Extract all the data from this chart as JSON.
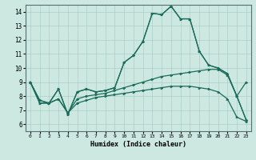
{
  "xlabel": "Humidex (Indice chaleur)",
  "xlim": [
    -0.5,
    23.5
  ],
  "ylim": [
    5.5,
    14.5
  ],
  "yticks": [
    6,
    7,
    8,
    9,
    10,
    11,
    12,
    13,
    14
  ],
  "xticks": [
    0,
    1,
    2,
    3,
    4,
    5,
    6,
    7,
    8,
    9,
    10,
    11,
    12,
    13,
    14,
    15,
    16,
    17,
    18,
    19,
    20,
    21,
    22,
    23
  ],
  "bg_color": "#cce8e0",
  "grid_color": "#aacfc8",
  "line_color": "#1a6b5a",
  "main_line": [
    9.0,
    7.5,
    7.5,
    8.5,
    6.7,
    8.3,
    8.5,
    8.3,
    8.4,
    8.6,
    10.4,
    10.9,
    11.9,
    13.9,
    13.8,
    14.4,
    13.5,
    13.5,
    11.2,
    10.2,
    10.0,
    9.6,
    8.0,
    9.0
  ],
  "line2": [
    9.0,
    7.5,
    7.5,
    8.5,
    6.7,
    8.3,
    8.5,
    8.3,
    8.4,
    8.6,
    10.4,
    10.9,
    11.9,
    13.9,
    13.8,
    14.4,
    13.5,
    13.5,
    11.2,
    10.2,
    10.0,
    9.6,
    8.0,
    6.3
  ],
  "diag1": [
    9.0,
    7.7,
    7.5,
    7.8,
    6.8,
    7.8,
    8.0,
    8.1,
    8.2,
    8.4,
    8.6,
    8.8,
    9.0,
    9.2,
    9.4,
    9.5,
    9.6,
    9.7,
    9.8,
    9.9,
    9.9,
    9.5,
    8.0,
    6.3
  ],
  "diag2": [
    9.0,
    7.7,
    7.5,
    7.8,
    6.8,
    7.5,
    7.7,
    7.9,
    8.0,
    8.1,
    8.2,
    8.3,
    8.4,
    8.5,
    8.6,
    8.7,
    8.7,
    8.7,
    8.6,
    8.5,
    8.3,
    7.8,
    6.5,
    6.2
  ]
}
